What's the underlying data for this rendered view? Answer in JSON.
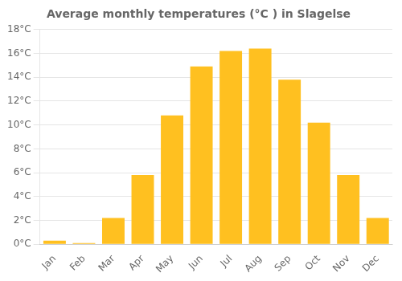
{
  "chart_data": {
    "type": "bar",
    "title": "Average monthly temperatures (°C ) in Slagelse",
    "categories": [
      "Jan",
      "Feb",
      "Mar",
      "Apr",
      "May",
      "Jun",
      "Jul",
      "Aug",
      "Sep",
      "Oct",
      "Nov",
      "Dec"
    ],
    "values": [
      0.3,
      0.1,
      2.2,
      5.8,
      10.8,
      14.9,
      16.2,
      16.4,
      13.8,
      10.2,
      5.8,
      2.2
    ],
    "color": "#FFC020",
    "ylim": [
      0,
      18
    ],
    "yticks": [
      {
        "value": 0,
        "label": "0°C"
      },
      {
        "value": 2,
        "label": "2°C"
      },
      {
        "value": 4,
        "label": "4°C"
      },
      {
        "value": 6,
        "label": "6°C"
      },
      {
        "value": 8,
        "label": "8°C"
      },
      {
        "value": 10,
        "label": "10°C"
      },
      {
        "value": 12,
        "label": "12°C"
      },
      {
        "value": 14,
        "label": "14°C"
      },
      {
        "value": 16,
        "label": "16°C"
      },
      {
        "value": 18,
        "label": "18°C"
      }
    ],
    "grid": true
  }
}
